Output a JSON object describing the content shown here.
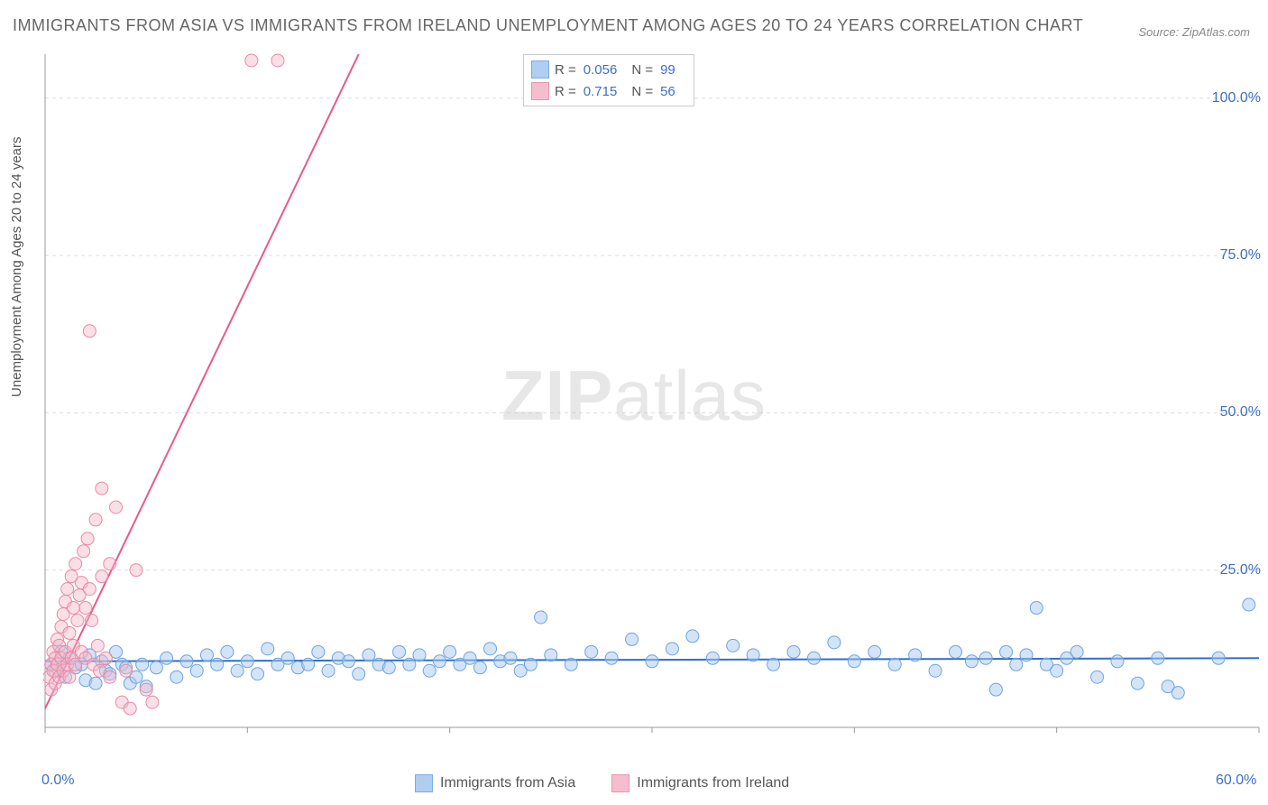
{
  "title": "IMMIGRANTS FROM ASIA VS IMMIGRANTS FROM IRELAND UNEMPLOYMENT AMONG AGES 20 TO 24 YEARS CORRELATION CHART",
  "source": "Source: ZipAtlas.com",
  "watermark": {
    "bold": "ZIP",
    "rest": "atlas"
  },
  "y_axis_label": "Unemployment Among Ages 20 to 24 years",
  "chart": {
    "type": "scatter",
    "xlim": [
      0,
      60
    ],
    "ylim": [
      0,
      107
    ],
    "x_ticks": [
      0,
      10,
      20,
      30,
      40,
      50,
      60
    ],
    "x_tick_labels_shown": {
      "0": "0.0%",
      "60": "60.0%"
    },
    "y_ticks": [
      25,
      50,
      75,
      100
    ],
    "y_tick_labels": {
      "25": "25.0%",
      "50": "50.0%",
      "75": "75.0%",
      "100": "100.0%"
    },
    "background_color": "#ffffff",
    "grid_color": "#dddddd",
    "grid_dash": "4,4",
    "axis_color": "#999999",
    "marker_radius": 7,
    "marker_stroke_width": 1,
    "line_width": 2,
    "series": [
      {
        "name": "Immigrants from Asia",
        "color_fill": "#a8c9f0",
        "color_stroke": "#6fa3e0",
        "fill_opacity": 0.5,
        "line_color": "#2f6fd0",
        "R": "0.056",
        "N": "99",
        "trend": {
          "x1": 0,
          "y1": 10.5,
          "x2": 60,
          "y2": 11.0
        },
        "points": [
          [
            0.3,
            10
          ],
          [
            0.5,
            9
          ],
          [
            0.8,
            12
          ],
          [
            1.0,
            8
          ],
          [
            1.2,
            11
          ],
          [
            1.5,
            9.5
          ],
          [
            1.8,
            10
          ],
          [
            2.0,
            7.5
          ],
          [
            2.2,
            11.5
          ],
          [
            2.5,
            7
          ],
          [
            2.8,
            10.5
          ],
          [
            3.0,
            9
          ],
          [
            3.2,
            8.5
          ],
          [
            3.5,
            12
          ],
          [
            3.8,
            10
          ],
          [
            4.0,
            9.5
          ],
          [
            4.2,
            7
          ],
          [
            4.5,
            8
          ],
          [
            4.8,
            10
          ],
          [
            5.0,
            6.5
          ],
          [
            5.5,
            9.5
          ],
          [
            6.0,
            11
          ],
          [
            6.5,
            8
          ],
          [
            7.0,
            10.5
          ],
          [
            7.5,
            9
          ],
          [
            8.0,
            11.5
          ],
          [
            8.5,
            10
          ],
          [
            9.0,
            12
          ],
          [
            9.5,
            9
          ],
          [
            10.0,
            10.5
          ],
          [
            10.5,
            8.5
          ],
          [
            11.0,
            12.5
          ],
          [
            11.5,
            10
          ],
          [
            12.0,
            11
          ],
          [
            12.5,
            9.5
          ],
          [
            13.0,
            10
          ],
          [
            13.5,
            12
          ],
          [
            14.0,
            9
          ],
          [
            14.5,
            11
          ],
          [
            15.0,
            10.5
          ],
          [
            15.5,
            8.5
          ],
          [
            16.0,
            11.5
          ],
          [
            16.5,
            10
          ],
          [
            17.0,
            9.5
          ],
          [
            17.5,
            12
          ],
          [
            18.0,
            10
          ],
          [
            18.5,
            11.5
          ],
          [
            19.0,
            9
          ],
          [
            19.5,
            10.5
          ],
          [
            20.0,
            12
          ],
          [
            20.5,
            10
          ],
          [
            21.0,
            11
          ],
          [
            21.5,
            9.5
          ],
          [
            22.0,
            12.5
          ],
          [
            22.5,
            10.5
          ],
          [
            23.0,
            11
          ],
          [
            23.5,
            9
          ],
          [
            24.0,
            10
          ],
          [
            24.5,
            17.5
          ],
          [
            25.0,
            11.5
          ],
          [
            26.0,
            10
          ],
          [
            27.0,
            12
          ],
          [
            28.0,
            11
          ],
          [
            29.0,
            14
          ],
          [
            30.0,
            10.5
          ],
          [
            31.0,
            12.5
          ],
          [
            32.0,
            14.5
          ],
          [
            33.0,
            11
          ],
          [
            34.0,
            13
          ],
          [
            35.0,
            11.5
          ],
          [
            36.0,
            10
          ],
          [
            37.0,
            12
          ],
          [
            38.0,
            11
          ],
          [
            39.0,
            13.5
          ],
          [
            40.0,
            10.5
          ],
          [
            41.0,
            12
          ],
          [
            42.0,
            10
          ],
          [
            43.0,
            11.5
          ],
          [
            44.0,
            9
          ],
          [
            45.0,
            12
          ],
          [
            45.8,
            10.5
          ],
          [
            46.5,
            11
          ],
          [
            47.0,
            6
          ],
          [
            47.5,
            12
          ],
          [
            48.0,
            10
          ],
          [
            48.5,
            11.5
          ],
          [
            49.0,
            19
          ],
          [
            49.5,
            10
          ],
          [
            50.0,
            9
          ],
          [
            50.5,
            11
          ],
          [
            51.0,
            12
          ],
          [
            52.0,
            8
          ],
          [
            53.0,
            10.5
          ],
          [
            54.0,
            7
          ],
          [
            55.0,
            11
          ],
          [
            55.5,
            6.5
          ],
          [
            56.0,
            5.5
          ],
          [
            58.0,
            11
          ],
          [
            59.5,
            19.5
          ]
        ]
      },
      {
        "name": "Immigrants from Ireland",
        "color_fill": "#f5b8c9",
        "color_stroke": "#e88aa5",
        "fill_opacity": 0.45,
        "line_color": "#e85a8a",
        "R": "0.715",
        "N": "56",
        "trend": {
          "x1": 0,
          "y1": 3,
          "x2": 15.5,
          "y2": 107
        },
        "points": [
          [
            0.2,
            8
          ],
          [
            0.3,
            10
          ],
          [
            0.3,
            6
          ],
          [
            0.4,
            12
          ],
          [
            0.4,
            9
          ],
          [
            0.5,
            11
          ],
          [
            0.5,
            7
          ],
          [
            0.6,
            14
          ],
          [
            0.6,
            10
          ],
          [
            0.7,
            8
          ],
          [
            0.7,
            13
          ],
          [
            0.8,
            16
          ],
          [
            0.8,
            11
          ],
          [
            0.9,
            9
          ],
          [
            0.9,
            18
          ],
          [
            1.0,
            20
          ],
          [
            1.0,
            12
          ],
          [
            1.1,
            10
          ],
          [
            1.1,
            22
          ],
          [
            1.2,
            15
          ],
          [
            1.2,
            8
          ],
          [
            1.3,
            24
          ],
          [
            1.3,
            11
          ],
          [
            1.4,
            19
          ],
          [
            1.4,
            13
          ],
          [
            1.5,
            26
          ],
          [
            1.5,
            10
          ],
          [
            1.6,
            17
          ],
          [
            1.7,
            21
          ],
          [
            1.8,
            23
          ],
          [
            1.8,
            12
          ],
          [
            1.9,
            28
          ],
          [
            2.0,
            19
          ],
          [
            2.0,
            11
          ],
          [
            2.1,
            30
          ],
          [
            2.2,
            22
          ],
          [
            2.3,
            17
          ],
          [
            2.4,
            10
          ],
          [
            2.5,
            33
          ],
          [
            2.6,
            13
          ],
          [
            2.7,
            9
          ],
          [
            2.8,
            24
          ],
          [
            2.8,
            38
          ],
          [
            3.0,
            11
          ],
          [
            3.2,
            26
          ],
          [
            3.2,
            8
          ],
          [
            3.5,
            35
          ],
          [
            3.8,
            4
          ],
          [
            4.0,
            9
          ],
          [
            4.2,
            3
          ],
          [
            4.5,
            25
          ],
          [
            5.0,
            6
          ],
          [
            5.3,
            4
          ],
          [
            10.2,
            106
          ],
          [
            11.5,
            106
          ],
          [
            2.2,
            63
          ]
        ]
      }
    ]
  },
  "legend_stats_labels": {
    "R": "R =",
    "N": "N ="
  },
  "bottom_legend": [
    "Immigrants from Asia",
    "Immigrants from Ireland"
  ]
}
